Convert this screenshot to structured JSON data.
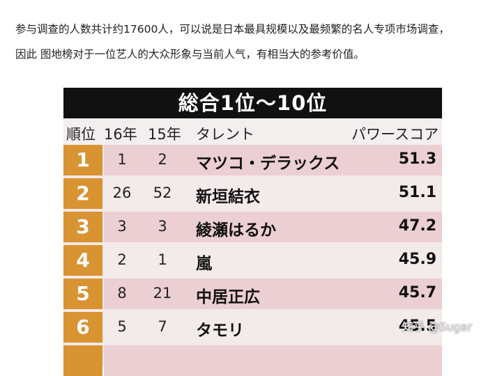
{
  "intro": {
    "line1": "参与调查的人数共计约17600人，可以说是日本最具规模以及最频繁的名人专项市场调查，",
    "line2": "因此 图地榜对于一位艺人的大众形象与当前人气，有相当大的参考价值。"
  },
  "table": {
    "title": "総合1位～10位",
    "headers": {
      "rank": "順位",
      "y16": "16年",
      "y15": "15年",
      "talent": "タレント",
      "score": "パワースコア"
    },
    "rows": [
      {
        "rank": "1",
        "y16": "1",
        "y15": "2",
        "name": "マツコ・デラックス",
        "score": "51.3"
      },
      {
        "rank": "2",
        "y16": "26",
        "y15": "52",
        "name": "新垣結衣",
        "score": "51.1"
      },
      {
        "rank": "3",
        "y16": "3",
        "y15": "3",
        "name": "綾瀬はるか",
        "score": "47.2"
      },
      {
        "rank": "4",
        "y16": "2",
        "y15": "1",
        "name": "嵐",
        "score": "45.9"
      },
      {
        "rank": "5",
        "y16": "8",
        "y15": "21",
        "name": "中居正広",
        "score": "45.7"
      },
      {
        "rank": "6",
        "y16": "5",
        "y15": "7",
        "name": "タモリ",
        "score": "45.5"
      }
    ]
  },
  "watermark": "知乎 @Sugar",
  "colors": {
    "rank_bg": "#d89333",
    "row_pink": "#eccfd3",
    "row_light": "#f3eaea",
    "title_bg": "#111111"
  }
}
